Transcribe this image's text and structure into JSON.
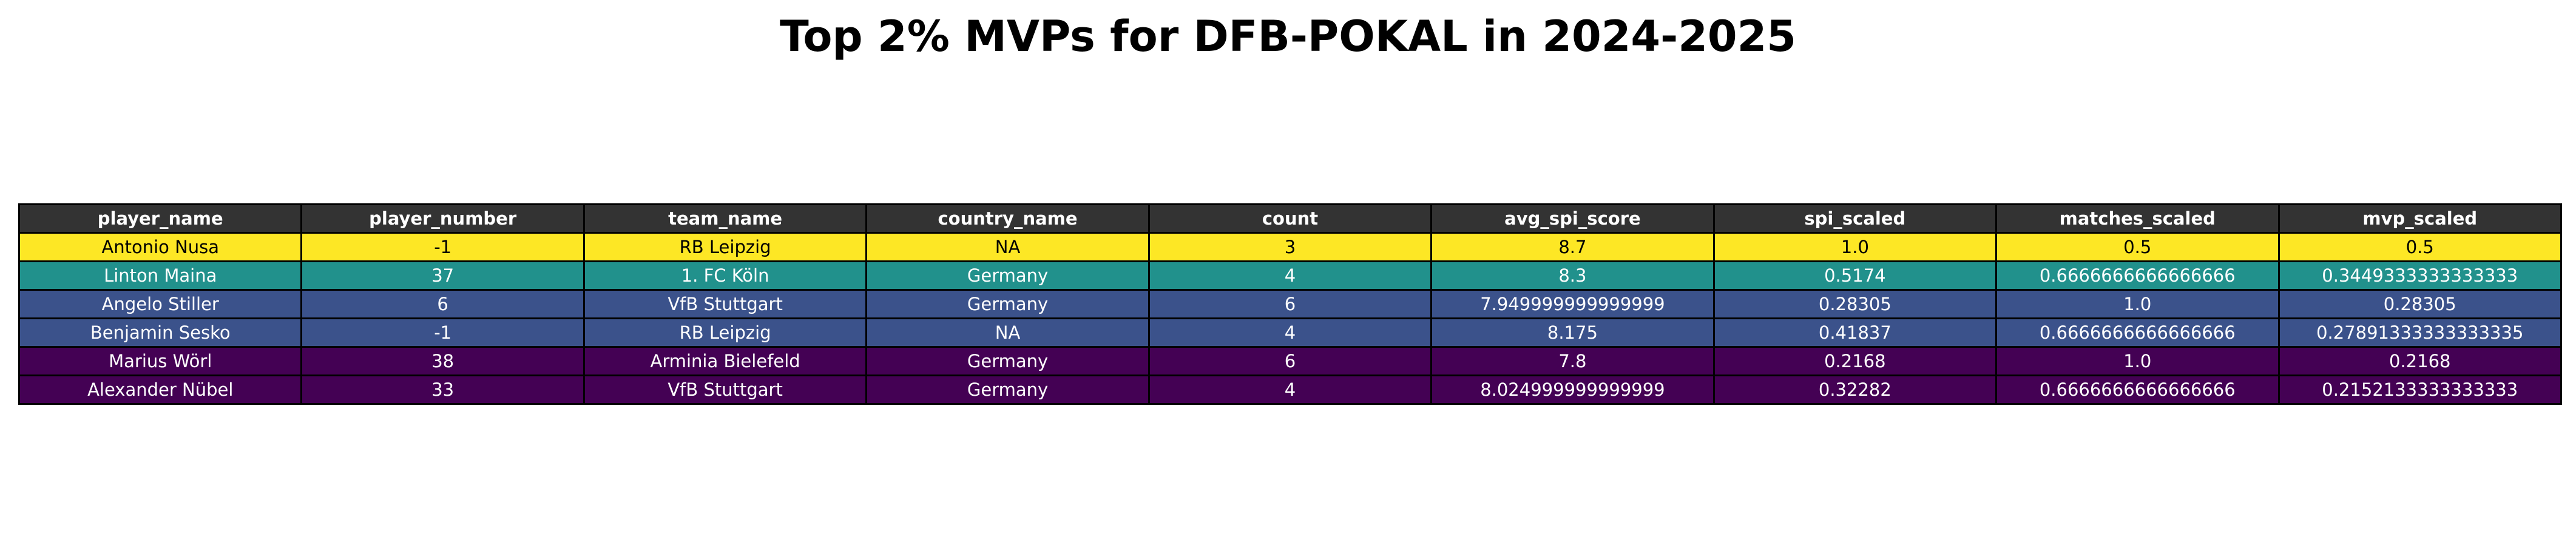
{
  "chart_data": {
    "type": "table",
    "title": "Top 2% MVPs for DFB-POKAL in 2024-2025",
    "columns": [
      "player_name",
      "player_number",
      "team_name",
      "country_name",
      "count",
      "avg_spi_score",
      "spi_scaled",
      "matches_scaled",
      "mvp_scaled"
    ],
    "rows": [
      {
        "cells": [
          "Antonio Nusa",
          "-1",
          "RB Leipzig",
          "NA",
          "3",
          "8.7",
          "1.0",
          "0.5",
          "0.5"
        ],
        "fill": "#fde725",
        "text_color": "#000000"
      },
      {
        "cells": [
          "Linton Maina",
          "37",
          "1. FC Köln",
          "Germany",
          "4",
          "8.3",
          "0.5174",
          "0.6666666666666666",
          "0.3449333333333333"
        ],
        "fill": "#21918c",
        "text_color": "#ffffff"
      },
      {
        "cells": [
          "Angelo Stiller",
          "6",
          "VfB Stuttgart",
          "Germany",
          "6",
          "7.949999999999999",
          "0.28305",
          "1.0",
          "0.28305"
        ],
        "fill": "#3b528b",
        "text_color": "#ffffff"
      },
      {
        "cells": [
          "Benjamin Sesko",
          "-1",
          "RB Leipzig",
          "NA",
          "4",
          "8.175",
          "0.41837",
          "0.6666666666666666",
          "0.27891333333333335"
        ],
        "fill": "#3b528b",
        "text_color": "#ffffff"
      },
      {
        "cells": [
          "Marius Wörl",
          "38",
          "Arminia Bielefeld",
          "Germany",
          "6",
          "7.8",
          "0.2168",
          "1.0",
          "0.2168"
        ],
        "fill": "#440154",
        "text_color": "#ffffff"
      },
      {
        "cells": [
          "Alexander Nübel",
          "33",
          "VfB Stuttgart",
          "Germany",
          "4",
          "8.024999999999999",
          "0.32282",
          "0.6666666666666666",
          "0.2152133333333333"
        ],
        "fill": "#440154",
        "text_color": "#ffffff"
      }
    ]
  }
}
